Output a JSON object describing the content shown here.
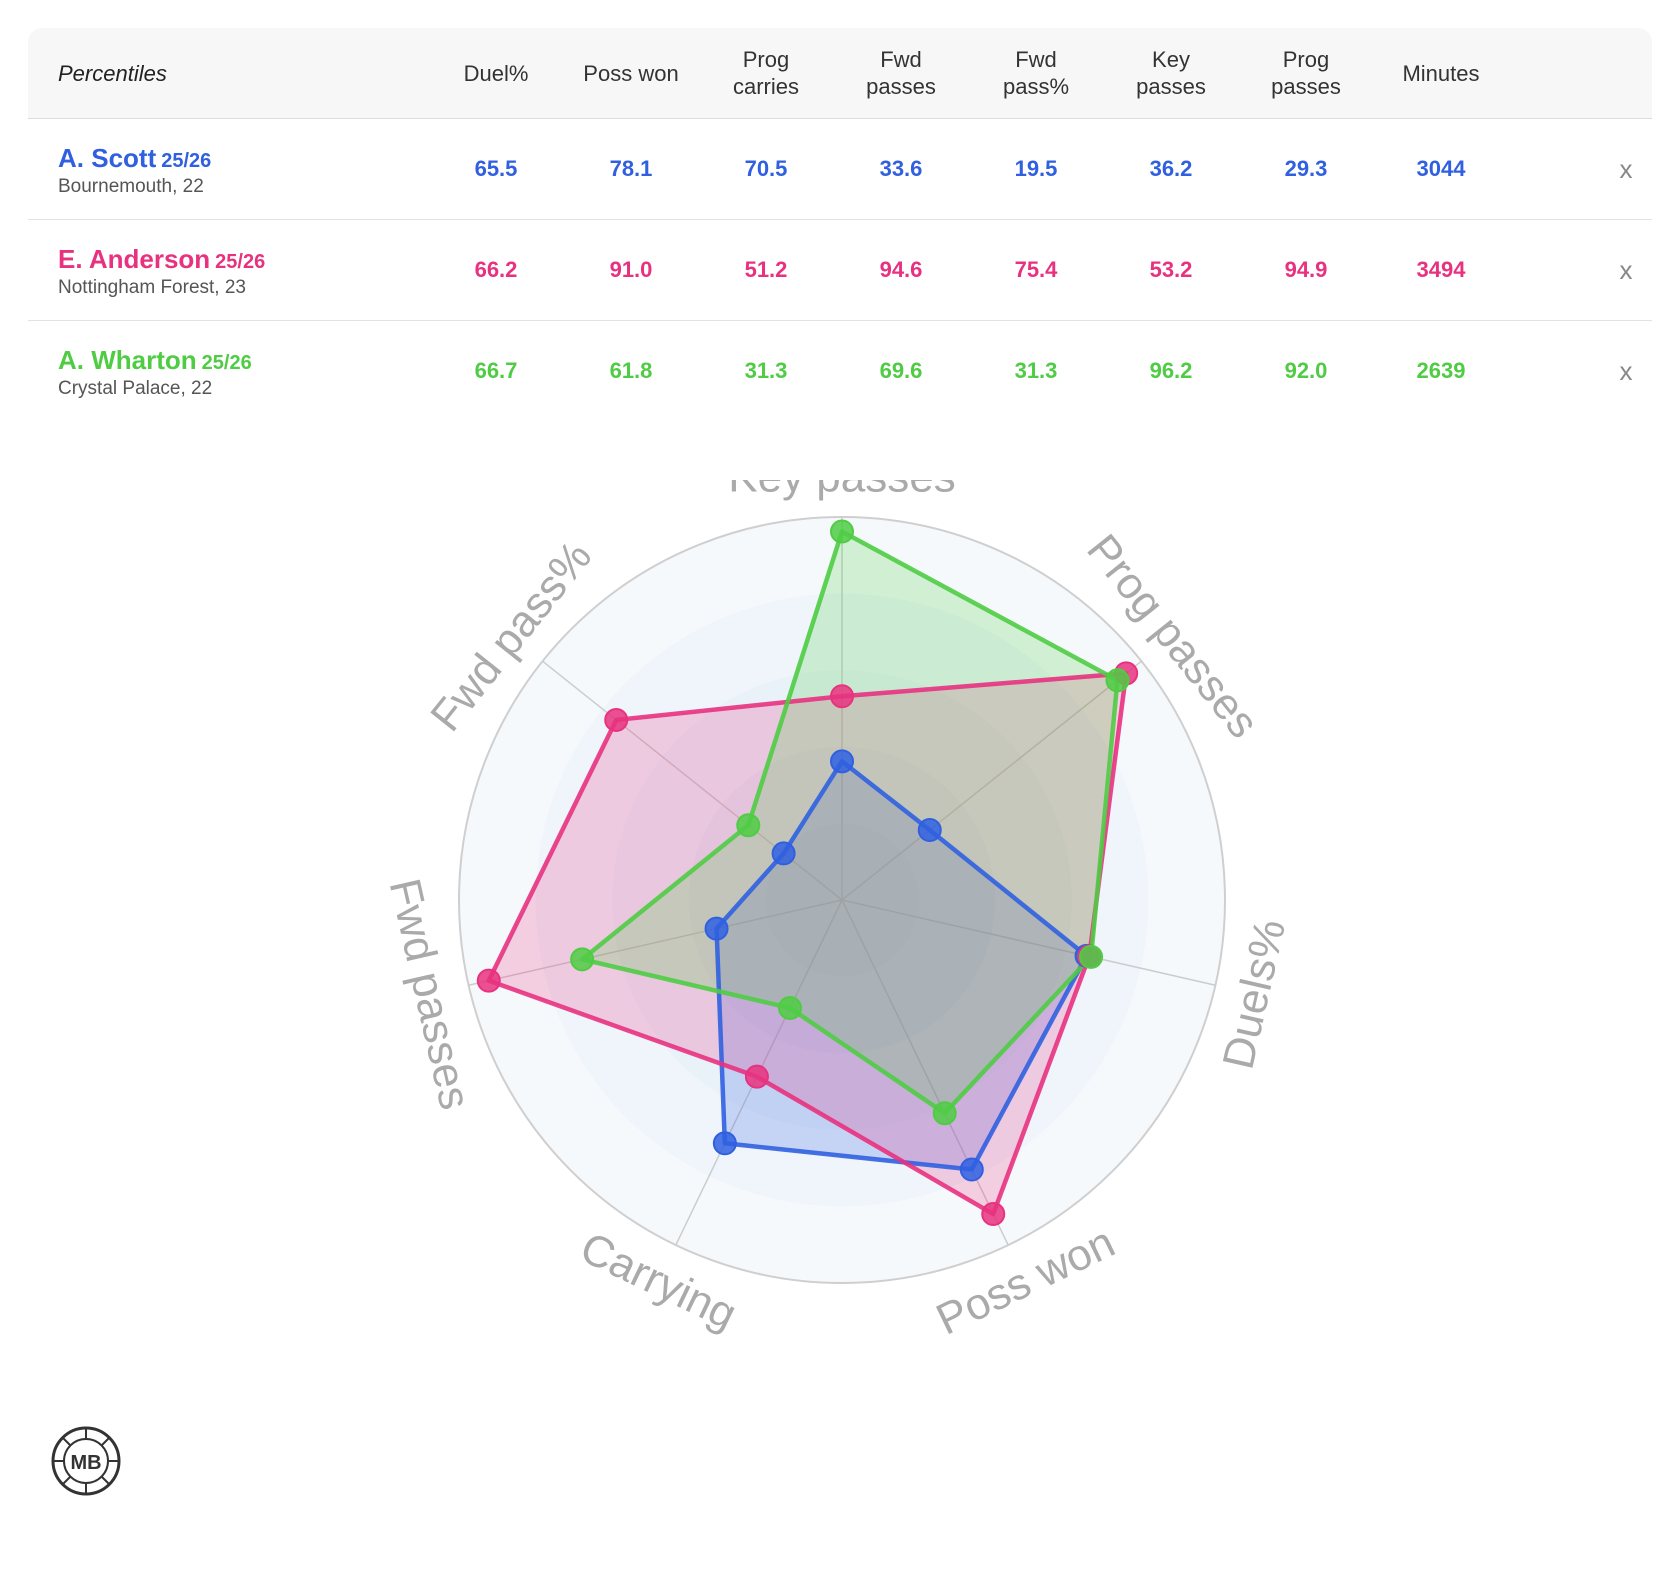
{
  "table": {
    "header_label": "Percentiles",
    "columns": [
      "Duel%",
      "Poss won",
      "Prog\ncarries",
      "Fwd\npasses",
      "Fwd\npass%",
      "Key\npasses",
      "Prog\npasses",
      "Minutes"
    ],
    "remove_label": "x",
    "players": [
      {
        "name": "A. Scott",
        "season": "25/26",
        "club": "Bournemouth, 22",
        "color": "#3060e0",
        "values": [
          "65.5",
          "78.1",
          "70.5",
          "33.6",
          "19.5",
          "36.2",
          "29.3",
          "3044"
        ]
      },
      {
        "name": "E. Anderson",
        "season": "25/26",
        "club": "Nottingham Forest, 23",
        "color": "#e8327f",
        "values": [
          "66.2",
          "91.0",
          "51.2",
          "94.6",
          "75.4",
          "53.2",
          "94.9",
          "3494"
        ]
      },
      {
        "name": "A. Wharton",
        "season": "25/26",
        "club": "Crystal Palace, 22",
        "color": "#4fcc44",
        "values": [
          "66.7",
          "61.8",
          "31.3",
          "69.6",
          "31.3",
          "96.2",
          "92.0",
          "2639"
        ]
      }
    ]
  },
  "chart_data": {
    "type": "radar",
    "axes": [
      "Key passes",
      "Prog passes",
      "Duels%",
      "Poss won",
      "Carrying",
      "Fwd passes",
      "Fwd pass%"
    ],
    "rmax": 100,
    "series": [
      {
        "name": "A. Scott",
        "color": "#3060e0",
        "values": [
          36.2,
          29.3,
          65.5,
          78.1,
          70.5,
          33.6,
          19.5
        ]
      },
      {
        "name": "E. Anderson",
        "color": "#e8327f",
        "values": [
          53.2,
          94.9,
          66.2,
          91.0,
          51.2,
          94.6,
          75.4
        ]
      },
      {
        "name": "A. Wharton",
        "color": "#4fcc44",
        "values": [
          96.2,
          92.0,
          66.7,
          61.8,
          31.3,
          69.6,
          31.3
        ]
      }
    ]
  },
  "logo": {
    "text": "MB"
  }
}
